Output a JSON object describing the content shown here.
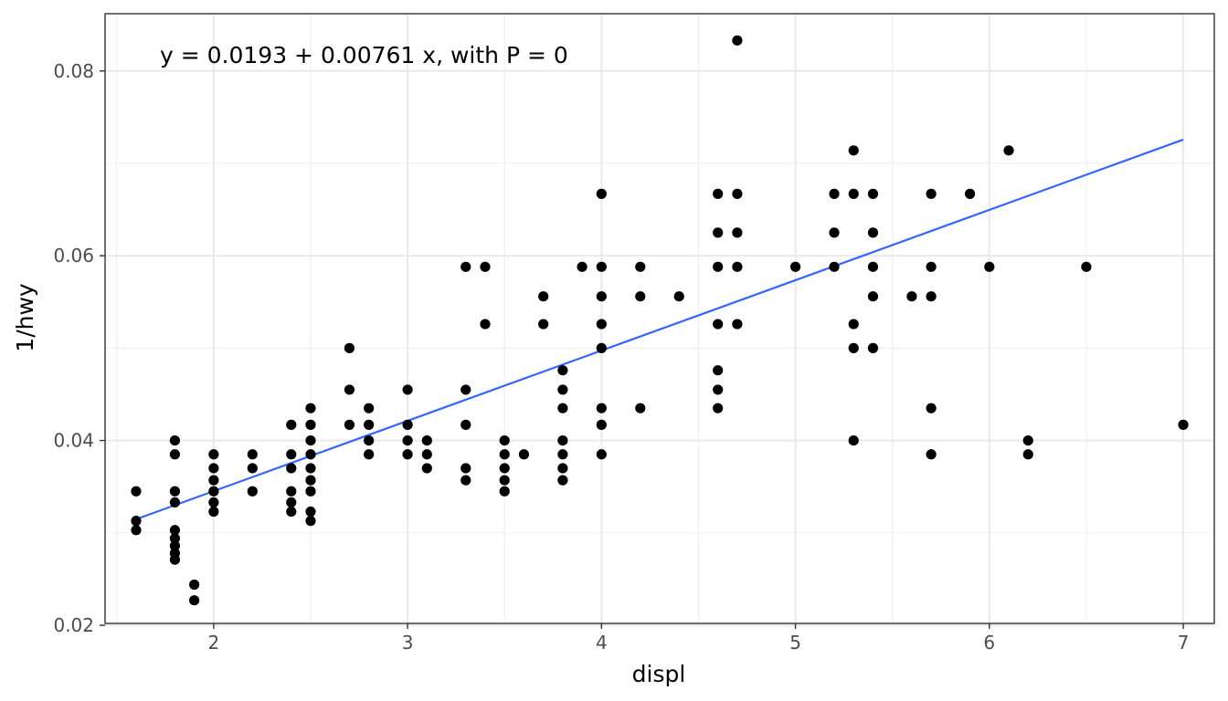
{
  "chart_data": {
    "type": "scatter",
    "title": "",
    "xlabel": "displ",
    "ylabel": "1/hwy",
    "xlim": [
      1.44,
      7.16
    ],
    "ylim": [
      0.0202,
      0.0862
    ],
    "x_ticks": [
      2,
      3,
      4,
      5,
      6,
      7
    ],
    "y_ticks": [
      0.02,
      0.04,
      0.06,
      0.08
    ],
    "x_tick_labels": [
      "2",
      "3",
      "4",
      "5",
      "6",
      "7"
    ],
    "y_tick_labels": [
      "0.02",
      "0.04",
      "0.06",
      "0.08"
    ],
    "grid": true,
    "annotation": "y = 0.0193 + 0.00761 x, with P = 0",
    "fit_line": {
      "intercept": 0.0193,
      "slope": 0.00761,
      "x_range": [
        1.6,
        7.0
      ],
      "color": "#3366ff"
    },
    "point_color": "#000000",
    "points": [
      {
        "x": 1.6,
        "y": 0.0345
      },
      {
        "x": 1.6,
        "y": 0.0313
      },
      {
        "x": 1.6,
        "y": 0.0303
      },
      {
        "x": 1.8,
        "y": 0.04
      },
      {
        "x": 1.8,
        "y": 0.0385
      },
      {
        "x": 1.8,
        "y": 0.0345
      },
      {
        "x": 1.8,
        "y": 0.0333
      },
      {
        "x": 1.8,
        "y": 0.0303
      },
      {
        "x": 1.8,
        "y": 0.0294
      },
      {
        "x": 1.8,
        "y": 0.0286
      },
      {
        "x": 1.8,
        "y": 0.0278
      },
      {
        "x": 1.8,
        "y": 0.0271
      },
      {
        "x": 1.9,
        "y": 0.0244
      },
      {
        "x": 1.9,
        "y": 0.0227
      },
      {
        "x": 2.0,
        "y": 0.0385
      },
      {
        "x": 2.0,
        "y": 0.037
      },
      {
        "x": 2.0,
        "y": 0.0357
      },
      {
        "x": 2.0,
        "y": 0.0345
      },
      {
        "x": 2.0,
        "y": 0.0333
      },
      {
        "x": 2.0,
        "y": 0.0323
      },
      {
        "x": 2.2,
        "y": 0.0385
      },
      {
        "x": 2.2,
        "y": 0.037
      },
      {
        "x": 2.2,
        "y": 0.0345
      },
      {
        "x": 2.4,
        "y": 0.0417
      },
      {
        "x": 2.4,
        "y": 0.0385
      },
      {
        "x": 2.4,
        "y": 0.037
      },
      {
        "x": 2.4,
        "y": 0.0345
      },
      {
        "x": 2.4,
        "y": 0.0333
      },
      {
        "x": 2.4,
        "y": 0.0323
      },
      {
        "x": 2.5,
        "y": 0.0435
      },
      {
        "x": 2.5,
        "y": 0.0417
      },
      {
        "x": 2.5,
        "y": 0.04
      },
      {
        "x": 2.5,
        "y": 0.0385
      },
      {
        "x": 2.5,
        "y": 0.037
      },
      {
        "x": 2.5,
        "y": 0.0357
      },
      {
        "x": 2.5,
        "y": 0.0345
      },
      {
        "x": 2.5,
        "y": 0.0323
      },
      {
        "x": 2.5,
        "y": 0.0313
      },
      {
        "x": 2.7,
        "y": 0.05
      },
      {
        "x": 2.7,
        "y": 0.0455
      },
      {
        "x": 2.7,
        "y": 0.0417
      },
      {
        "x": 2.8,
        "y": 0.0435
      },
      {
        "x": 2.8,
        "y": 0.0417
      },
      {
        "x": 2.8,
        "y": 0.04
      },
      {
        "x": 2.8,
        "y": 0.0385
      },
      {
        "x": 3.0,
        "y": 0.0455
      },
      {
        "x": 3.0,
        "y": 0.0417
      },
      {
        "x": 3.0,
        "y": 0.04
      },
      {
        "x": 3.0,
        "y": 0.0385
      },
      {
        "x": 3.1,
        "y": 0.04
      },
      {
        "x": 3.1,
        "y": 0.0385
      },
      {
        "x": 3.1,
        "y": 0.037
      },
      {
        "x": 3.3,
        "y": 0.0588
      },
      {
        "x": 3.3,
        "y": 0.0455
      },
      {
        "x": 3.3,
        "y": 0.0417
      },
      {
        "x": 3.3,
        "y": 0.037
      },
      {
        "x": 3.3,
        "y": 0.0357
      },
      {
        "x": 3.4,
        "y": 0.0588
      },
      {
        "x": 3.4,
        "y": 0.0526
      },
      {
        "x": 3.5,
        "y": 0.04
      },
      {
        "x": 3.5,
        "y": 0.0385
      },
      {
        "x": 3.5,
        "y": 0.037
      },
      {
        "x": 3.5,
        "y": 0.0357
      },
      {
        "x": 3.5,
        "y": 0.0345
      },
      {
        "x": 3.6,
        "y": 0.0385
      },
      {
        "x": 3.7,
        "y": 0.0556
      },
      {
        "x": 3.7,
        "y": 0.0526
      },
      {
        "x": 3.8,
        "y": 0.0476
      },
      {
        "x": 3.8,
        "y": 0.0455
      },
      {
        "x": 3.8,
        "y": 0.0435
      },
      {
        "x": 3.8,
        "y": 0.04
      },
      {
        "x": 3.8,
        "y": 0.0385
      },
      {
        "x": 3.8,
        "y": 0.037
      },
      {
        "x": 3.8,
        "y": 0.0357
      },
      {
        "x": 3.9,
        "y": 0.0588
      },
      {
        "x": 4.0,
        "y": 0.0667
      },
      {
        "x": 4.0,
        "y": 0.0588
      },
      {
        "x": 4.0,
        "y": 0.0556
      },
      {
        "x": 4.0,
        "y": 0.0526
      },
      {
        "x": 4.0,
        "y": 0.05
      },
      {
        "x": 4.0,
        "y": 0.0435
      },
      {
        "x": 4.0,
        "y": 0.0417
      },
      {
        "x": 4.0,
        "y": 0.0385
      },
      {
        "x": 4.2,
        "y": 0.0588
      },
      {
        "x": 4.2,
        "y": 0.0556
      },
      {
        "x": 4.2,
        "y": 0.0435
      },
      {
        "x": 4.4,
        "y": 0.0556
      },
      {
        "x": 4.6,
        "y": 0.0667
      },
      {
        "x": 4.6,
        "y": 0.0625
      },
      {
        "x": 4.6,
        "y": 0.0588
      },
      {
        "x": 4.6,
        "y": 0.0526
      },
      {
        "x": 4.6,
        "y": 0.0476
      },
      {
        "x": 4.6,
        "y": 0.0455
      },
      {
        "x": 4.6,
        "y": 0.0435
      },
      {
        "x": 4.7,
        "y": 0.0833
      },
      {
        "x": 4.7,
        "y": 0.0667
      },
      {
        "x": 4.7,
        "y": 0.0625
      },
      {
        "x": 4.7,
        "y": 0.0588
      },
      {
        "x": 4.7,
        "y": 0.0526
      },
      {
        "x": 5.0,
        "y": 0.0588
      },
      {
        "x": 5.2,
        "y": 0.0667
      },
      {
        "x": 5.2,
        "y": 0.0625
      },
      {
        "x": 5.2,
        "y": 0.0588
      },
      {
        "x": 5.3,
        "y": 0.0714
      },
      {
        "x": 5.3,
        "y": 0.0667
      },
      {
        "x": 5.3,
        "y": 0.0526
      },
      {
        "x": 5.3,
        "y": 0.05
      },
      {
        "x": 5.3,
        "y": 0.04
      },
      {
        "x": 5.4,
        "y": 0.0667
      },
      {
        "x": 5.4,
        "y": 0.0625
      },
      {
        "x": 5.4,
        "y": 0.0588
      },
      {
        "x": 5.4,
        "y": 0.0556
      },
      {
        "x": 5.4,
        "y": 0.05
      },
      {
        "x": 5.6,
        "y": 0.0556
      },
      {
        "x": 5.7,
        "y": 0.0667
      },
      {
        "x": 5.7,
        "y": 0.0588
      },
      {
        "x": 5.7,
        "y": 0.0556
      },
      {
        "x": 5.7,
        "y": 0.0435
      },
      {
        "x": 5.7,
        "y": 0.0385
      },
      {
        "x": 5.9,
        "y": 0.0667
      },
      {
        "x": 6.0,
        "y": 0.0588
      },
      {
        "x": 6.1,
        "y": 0.0714
      },
      {
        "x": 6.2,
        "y": 0.04
      },
      {
        "x": 6.2,
        "y": 0.0385
      },
      {
        "x": 6.5,
        "y": 0.0588
      },
      {
        "x": 7.0,
        "y": 0.0417
      }
    ]
  }
}
